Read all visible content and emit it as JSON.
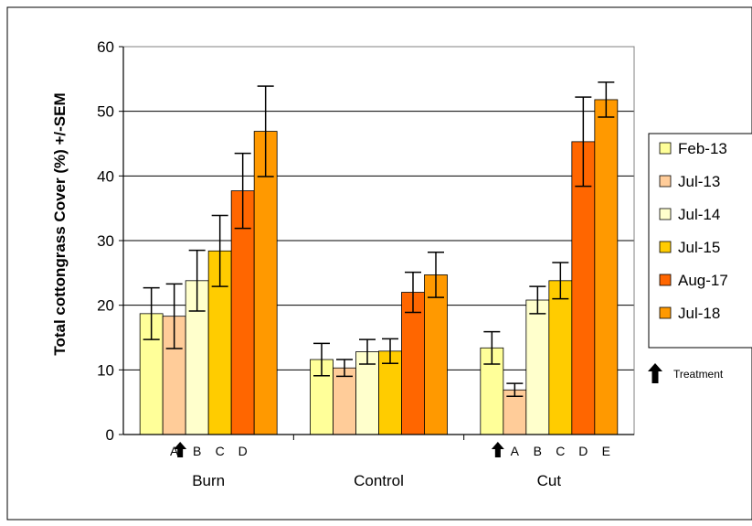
{
  "chart_data": {
    "type": "bar",
    "ylabel": "Total cottongrass Cover (%) +/-SEM",
    "ylim": [
      0,
      60
    ],
    "yticks": [
      0,
      10,
      20,
      30,
      40,
      50,
      60
    ],
    "grid": true,
    "legend_position": "right",
    "groups": [
      "Burn",
      "Control",
      "Cut"
    ],
    "series": [
      {
        "name": "Feb-13",
        "color": "#ffff99",
        "values": [
          18.7,
          11.6,
          13.4
        ],
        "errors": [
          4.0,
          2.5,
          2.5
        ]
      },
      {
        "name": "Jul-13",
        "color": "#ffcc99",
        "values": [
          18.3,
          10.3,
          6.9
        ],
        "errors": [
          5.0,
          1.3,
          1.0
        ]
      },
      {
        "name": "Jul-14",
        "color": "#ffffcc",
        "values": [
          23.8,
          12.8,
          20.8
        ],
        "errors": [
          4.7,
          1.9,
          2.1
        ]
      },
      {
        "name": "Jul-15",
        "color": "#ffcc00",
        "values": [
          28.4,
          12.9,
          23.8
        ],
        "errors": [
          5.5,
          1.9,
          2.8
        ]
      },
      {
        "name": "Aug-17",
        "color": "#ff6600",
        "values": [
          37.7,
          22.0,
          45.3
        ],
        "errors": [
          5.8,
          3.1,
          6.9
        ]
      },
      {
        "name": "Jul-18",
        "color": "#ff9900",
        "values": [
          46.9,
          24.7,
          51.8
        ],
        "errors": [
          7.0,
          3.5,
          2.7
        ]
      }
    ],
    "treatment_letters": {
      "Burn": [
        "",
        "A",
        "B",
        "C",
        "D",
        ""
      ],
      "Control": [
        "",
        "",
        "",
        "",
        "",
        ""
      ],
      "Cut": [
        "",
        "A",
        "B",
        "C",
        "D",
        "E"
      ]
    },
    "treatment_marker_after_series": {
      "Burn": 1,
      "Cut": 0
    },
    "treatment_legend_label": "Treatment",
    "colors": {
      "grid": "#000000",
      "axis": "#000000",
      "error_bar": "#000000",
      "bar_stroke": "#000000"
    }
  }
}
